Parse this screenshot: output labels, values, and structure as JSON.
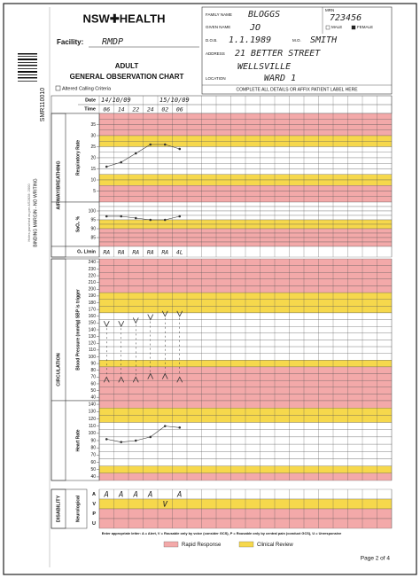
{
  "header": {
    "logo": "NSW✚HEALTH",
    "facility_label": "Facility:",
    "facility": "RMDP",
    "title_line1": "ADULT",
    "title_line2": "GENERAL OBSERVATION CHART",
    "altered": "Altered Calling Criteria",
    "margin_code": "SMR110010",
    "binding": "BINDING MARGIN - NO WRITING",
    "punch_note": "Holes punched as per AS2828: 2000"
  },
  "patient": {
    "family_label": "FAMILY NAME",
    "family": "BLOGGS",
    "mrn_label": "MRN",
    "mrn": "723456",
    "given_label": "GIVEN NAME",
    "given": "JO",
    "male": "MALE",
    "female": "FEMALE",
    "dob_label": "D.O.B.",
    "dob": "1.1.1989",
    "mo_label": "M.O.",
    "mo": "SMITH",
    "address_label": "ADDRESS",
    "address1": "21 BETTER STREET",
    "address2": "WELLSVILLE",
    "location_label": "LOCATION",
    "location": "WARD 1",
    "note": "COMPLETE ALL DETAILS OR AFFIX PATIENT LABEL HERE"
  },
  "grid": {
    "date_label": "Date",
    "time_label": "Time",
    "dates": [
      "14/10/09",
      null,
      null,
      null,
      "15/10/09",
      null
    ],
    "times": [
      "06",
      "14",
      "22",
      "24",
      "02",
      "06"
    ],
    "sections": [
      "AIRWAY/BREATHING",
      "CIRCULATION",
      "DISABILITY"
    ],
    "resp": {
      "label": "Respiratory Rate",
      "ylim": [
        0,
        40
      ],
      "yticks": [
        35,
        30,
        25,
        20,
        15,
        10,
        5
      ],
      "row_colors": [
        "#f3a9a9",
        "#f3a9a9",
        "#f3a9a9",
        "#f3a9a9",
        "#f6d84c",
        "#f6d84c",
        "#ffffff",
        "#ffffff",
        "#ffffff",
        "#ffffff",
        "#ffffff",
        "#f6d84c",
        "#f6d84c",
        "#f3a9a9",
        "#f3a9a9",
        "#f3a9a9"
      ],
      "values": [
        16,
        18,
        22,
        26,
        26,
        24
      ],
      "color": "#333333"
    },
    "spo2": {
      "label": "SaO₂ %",
      "ylim": [
        80,
        105
      ],
      "yticks": [
        100,
        95,
        90,
        85
      ],
      "row_colors": [
        "#ffffff",
        "#ffffff",
        "#ffffff",
        "#ffffff",
        "#f6d84c",
        "#f6d84c",
        "#f3a9a9",
        "#f3a9a9",
        "#f3a9a9",
        "#f3a9a9"
      ],
      "values": [
        97,
        97,
        96,
        95,
        95,
        97
      ],
      "color": "#333333"
    },
    "o2": {
      "label": "O₂ L/min",
      "values": [
        "RA",
        "RA",
        "RA",
        "RA",
        "RA",
        "4L"
      ]
    },
    "bp": {
      "label": "Blood Pressure (mmHg) SBP is trigger",
      "ylim": [
        35,
        245
      ],
      "yticks": [
        240,
        230,
        220,
        210,
        200,
        190,
        180,
        170,
        160,
        150,
        140,
        130,
        120,
        110,
        100,
        90,
        80,
        70,
        60,
        50,
        40
      ],
      "row_colors": [
        "#f3a9a9",
        "#f3a9a9",
        "#f3a9a9",
        "#f3a9a9",
        "#f3a9a9",
        "#f6d84c",
        "#f6d84c",
        "#f6d84c",
        "#ffffff",
        "#ffffff",
        "#ffffff",
        "#ffffff",
        "#ffffff",
        "#ffffff",
        "#ffffff",
        "#f6d84c",
        "#f3a9a9",
        "#f3a9a9",
        "#f3a9a9",
        "#f3a9a9",
        "#f3a9a9"
      ],
      "systolic": [
        145,
        145,
        150,
        155,
        160,
        160
      ],
      "diastolic": [
        70,
        70,
        70,
        75,
        75,
        70
      ],
      "color": "#333333"
    },
    "hr": {
      "label": "Heart Rate",
      "ylim": [
        35,
        145
      ],
      "yticks": [
        140,
        130,
        120,
        110,
        100,
        90,
        80,
        70,
        60,
        50,
        40
      ],
      "row_colors": [
        "#f3a9a9",
        "#f6d84c",
        "#f6d84c",
        "#ffffff",
        "#ffffff",
        "#ffffff",
        "#ffffff",
        "#ffffff",
        "#ffffff",
        "#f6d84c",
        "#f3a9a9"
      ],
      "values": [
        92,
        88,
        90,
        95,
        110,
        108
      ],
      "color": "#333333"
    },
    "neuro": {
      "label": "Neurological",
      "levels": [
        "A",
        "V",
        "P",
        "U"
      ],
      "row_colors": [
        "#ffffff",
        "#f6d84c",
        "#f3a9a9",
        "#f3a9a9"
      ],
      "values": [
        "A",
        "A",
        "A",
        "A",
        "V",
        "A"
      ]
    }
  },
  "legend": [
    {
      "name": "Rapid Response",
      "color": "#f3a9a9"
    },
    {
      "name": "Clinical Review",
      "color": "#f6d84c"
    }
  ],
  "footer": {
    "instruction": "Enter appropriate letter: A = Alert, V = Rousable only by voice (consider GCS), P = Rousable only by central pain (conduct GCS), U = Unresponsive",
    "page": "Page 2 of 4"
  }
}
